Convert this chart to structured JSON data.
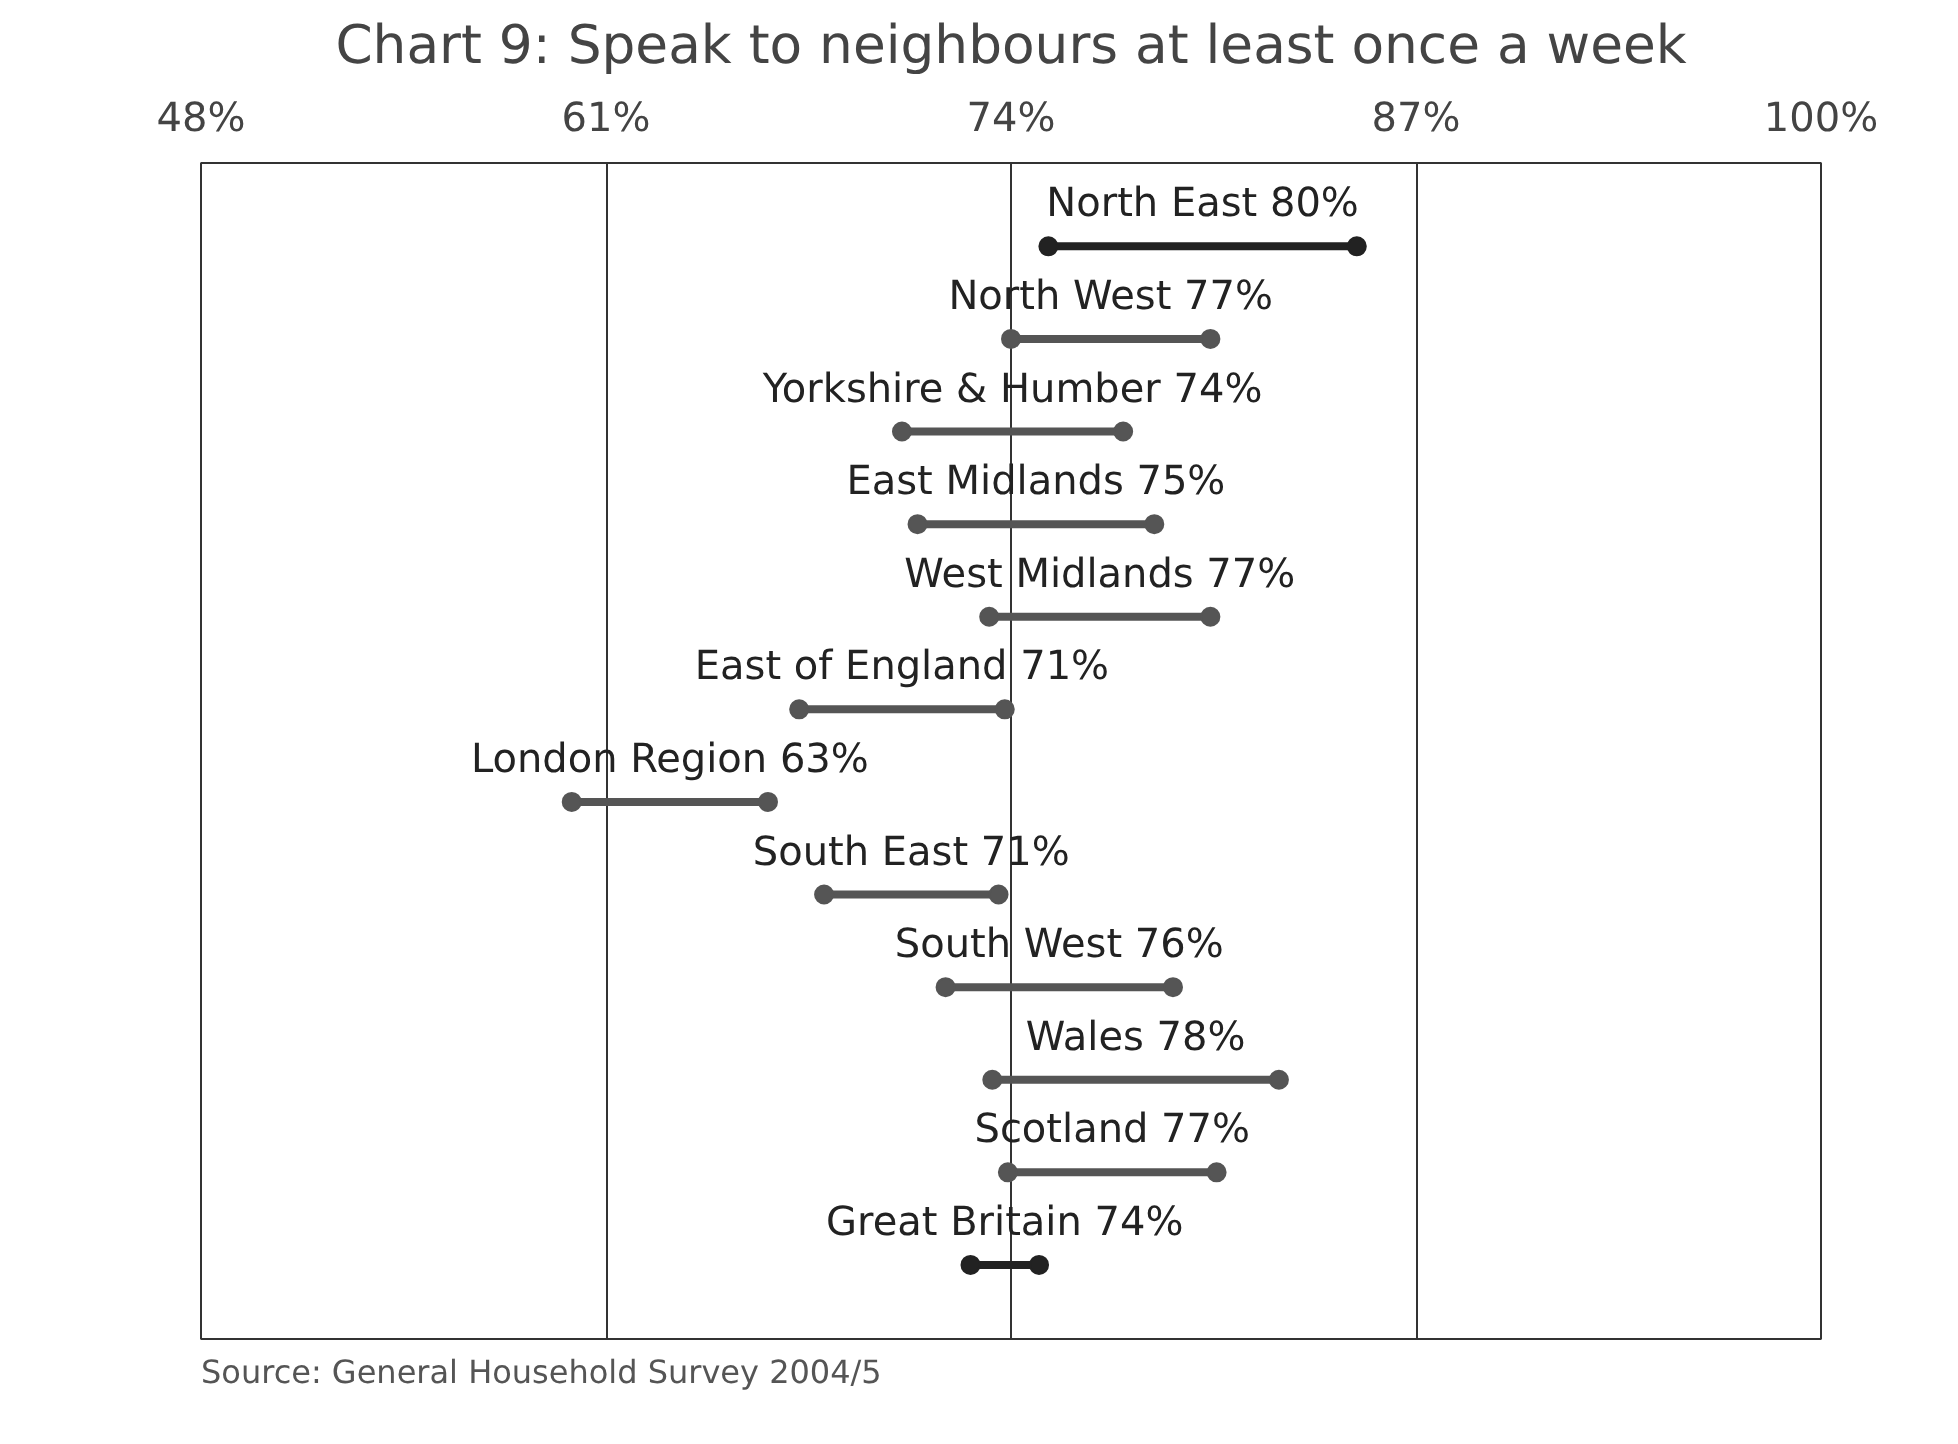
{
  "chart_data": {
    "type": "bar",
    "orientation": "horizontal",
    "title": "Chart 9: Speak to neighbours at least once a week",
    "categories": [
      "North East 80%",
      "North West 77%",
      "Yorkshire & Humber 74%",
      "East Midlands 75%",
      "West Midlands 77%",
      "East of England 71%",
      "London Region 63%",
      "South East 71%",
      "South West 76%",
      "Wales 78%",
      "Scotland 77%",
      "Great Britain 74%"
    ],
    "series": [
      {
        "base": [
          75.2,
          74.0,
          70.5,
          71.0,
          73.3,
          67.2,
          59.9,
          68.0,
          71.9,
          73.4,
          73.9,
          72.7
        ],
        "values": [
          9.9,
          6.4,
          7.1,
          7.6,
          7.1,
          6.6,
          6.3,
          5.6,
          7.3,
          9.2,
          6.7,
          2.2
        ],
        "colors": [
          "#222222",
          "#555555",
          "#555555",
          "#555555",
          "#555555",
          "#555555",
          "#555555",
          "#555555",
          "#555555",
          "#555555",
          "#555555",
          "#222222"
        ]
      },
      {
        "type": "scatter",
        "marker": "circle",
        "values": [
          75.2,
          74.0,
          70.5,
          71.0,
          73.3,
          67.2,
          59.9,
          68.0,
          71.9,
          73.4,
          73.9,
          72.7
        ],
        "colors": [
          "#222222",
          "#555555",
          "#555555",
          "#555555",
          "#555555",
          "#555555",
          "#555555",
          "#555555",
          "#555555",
          "#555555",
          "#555555",
          "#222222"
        ]
      },
      {
        "type": "scatter",
        "marker": "circle",
        "values": [
          85.1,
          80.4,
          77.6,
          78.6,
          80.4,
          73.8,
          66.2,
          73.6,
          79.2,
          82.6,
          80.6,
          74.9
        ],
        "colors": [
          "#222222",
          "#555555",
          "#555555",
          "#555555",
          "#555555",
          "#555555",
          "#555555",
          "#555555",
          "#555555",
          "#555555",
          "#555555",
          "#222222"
        ]
      }
    ],
    "xlim": [
      48,
      100
    ],
    "xticks": [
      {
        "value": 48,
        "label": "48%"
      },
      {
        "value": 61,
        "label": "61%"
      },
      {
        "value": 74,
        "label": "74%"
      },
      {
        "value": 87,
        "label": "87%"
      },
      {
        "value": 100,
        "label": "100%"
      }
    ],
    "grid": "x",
    "tick_labels": "x",
    "annotations": [
      "Source: General Household Survey 2004/5"
    ]
  }
}
